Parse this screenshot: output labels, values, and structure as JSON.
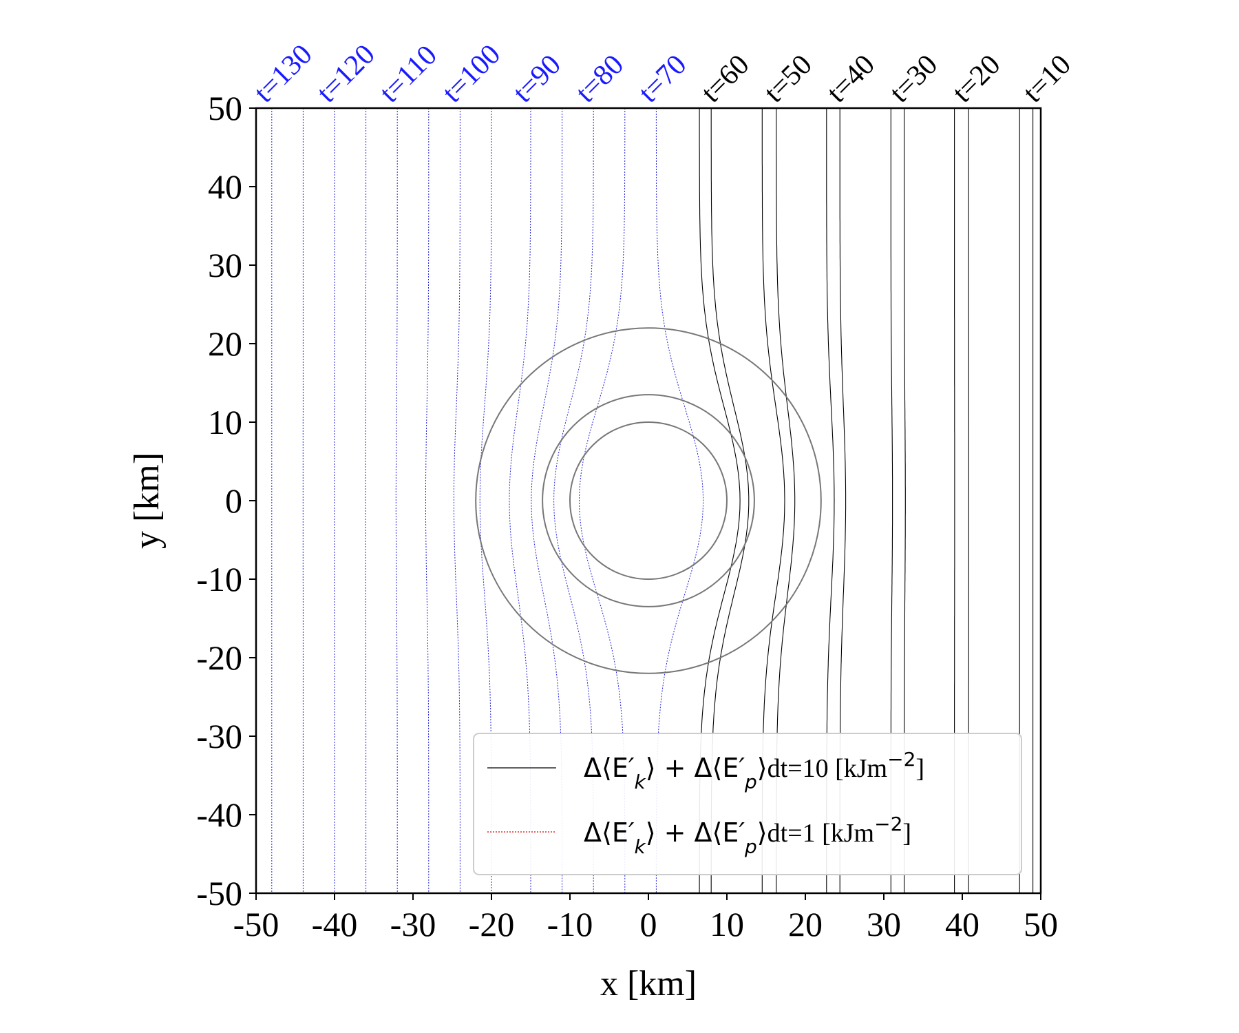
{
  "chart_data": {
    "type": "line",
    "xlabel": "x [km]",
    "ylabel": "y [km]",
    "xlim": [
      -50,
      50
    ],
    "ylim": [
      -50,
      50
    ],
    "xticks": [
      -50,
      -40,
      -30,
      -20,
      -10,
      0,
      10,
      20,
      30,
      40,
      50
    ],
    "yticks": [
      -50,
      -40,
      -30,
      -20,
      -10,
      0,
      10,
      20,
      30,
      40,
      50
    ],
    "grid": false,
    "legend_position": "bottom-right",
    "colors": {
      "dt10": "#000000",
      "dt1": "#2222dd",
      "legend_dt1_sample": "#dd0000",
      "circles": "#777777",
      "black_labels": "#000000",
      "blue_labels": "#1a1aff"
    },
    "series": [
      {
        "name": "Δ⟨E′k⟩ + Δ⟨E′p⟩dt=10 [kJm−2]",
        "style": "solid",
        "color": "#000000"
      },
      {
        "name": "Δ⟨E′k⟩ + Δ⟨E′p⟩dt=1 [kJm−2]",
        "style": "dotted",
        "color": "#dd0000"
      }
    ],
    "legend_parts": [
      {
        "pre": "Δ⟨E",
        "sub": "k",
        "mid": "⟩ + Δ⟨E",
        "sub2": "p",
        "post": "⟩",
        "serif": "dt=10 [kJm",
        "sup": "−2",
        "end": "]"
      },
      {
        "pre": "Δ⟨E",
        "sub": "k",
        "mid": "⟩ + Δ⟨E",
        "sub2": "p",
        "post": "⟩",
        "serif": "dt=1 [kJm",
        "sup": "−2",
        "end": "]"
      }
    ],
    "circles_km": [
      10,
      13.5,
      22
    ],
    "time_labels": [
      {
        "label": "t=130",
        "x": -50,
        "color": "blue"
      },
      {
        "label": "t=120",
        "x": -42,
        "color": "blue"
      },
      {
        "label": "t=110",
        "x": -34,
        "color": "blue"
      },
      {
        "label": "t=100",
        "x": -26,
        "color": "blue"
      },
      {
        "label": "t=90",
        "x": -17,
        "color": "blue"
      },
      {
        "label": "t=80",
        "x": -9,
        "color": "blue"
      },
      {
        "label": "t=70",
        "x": -1,
        "color": "blue"
      },
      {
        "label": "t=60",
        "x": 7,
        "color": "black"
      },
      {
        "label": "t=50",
        "x": 15,
        "color": "black"
      },
      {
        "label": "t=40",
        "x": 23,
        "color": "black"
      },
      {
        "label": "t=30",
        "x": 31,
        "color": "black"
      },
      {
        "label": "t=20",
        "x": 39,
        "color": "black"
      },
      {
        "label": "t=10",
        "x": 48,
        "color": "black"
      }
    ],
    "black_contours_x": [
      6.5,
      8,
      14.5,
      16.3,
      22.7,
      24.4,
      30.9,
      32.6,
      39,
      40.8,
      47.3,
      49
    ],
    "blue_contours_x": [
      -48,
      -44,
      -40,
      -36,
      -32,
      -28,
      -24,
      -20,
      -15,
      -11,
      -7,
      -3,
      1
    ]
  }
}
